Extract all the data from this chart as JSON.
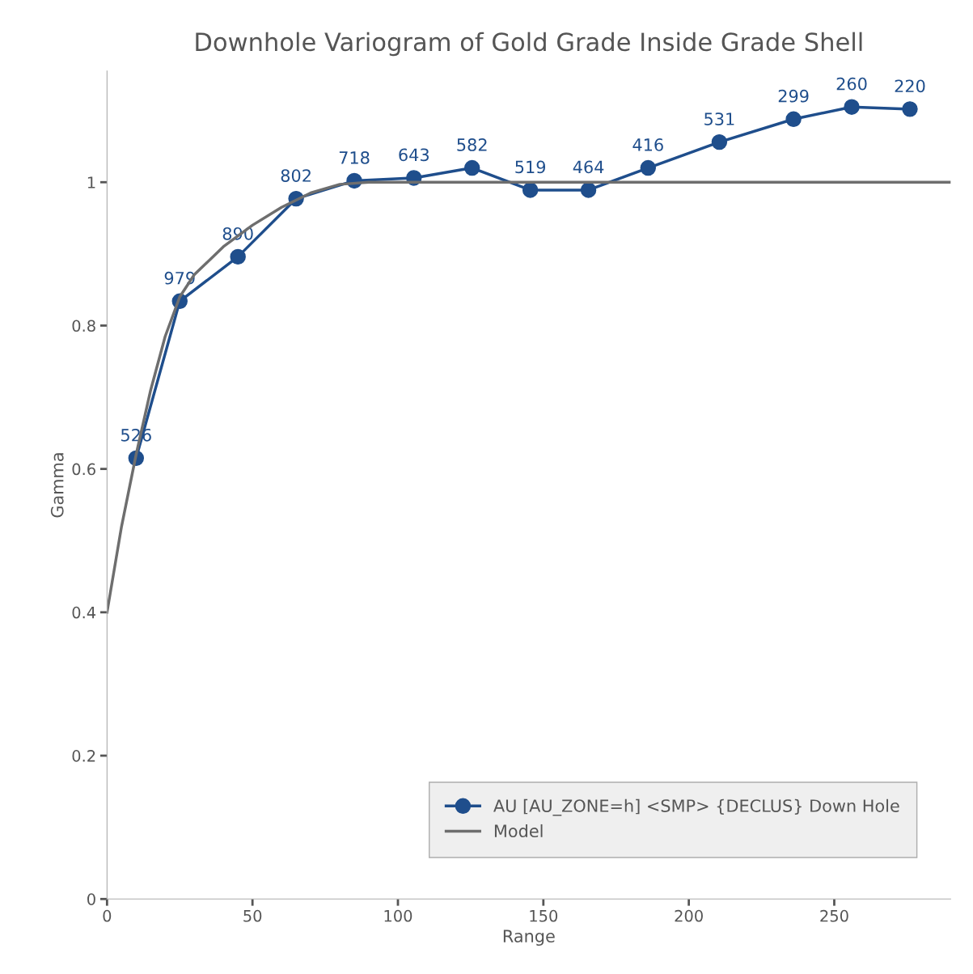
{
  "chart_data": {
    "type": "line",
    "title": "Downhole Variogram of Gold Grade Inside Grade Shell",
    "xlabel": "Range",
    "ylabel": "Gamma",
    "xlim": [
      0,
      290
    ],
    "xticks": [
      0,
      50,
      100,
      150,
      200,
      250
    ],
    "ylim": [
      0,
      1.155
    ],
    "yticks": [
      0,
      0.2,
      0.4,
      0.6,
      0.8,
      1
    ],
    "grid": false,
    "legend": "bottom right",
    "series": [
      {
        "name": "AU [AU_ZONE=h] <SMP> {DECLUS} Down Hole",
        "color": "#1f4e8c",
        "marker": "circle",
        "x": [
          10,
          25,
          45,
          65,
          85,
          105.5,
          125.5,
          145.5,
          165.5,
          186,
          210.5,
          236,
          256,
          276
        ],
        "values": [
          0.615,
          0.834,
          0.896,
          0.977,
          1.002,
          1.006,
          1.02,
          0.989,
          0.989,
          1.02,
          1.056,
          1.088,
          1.105,
          1.102
        ]
      },
      {
        "name": "Model",
        "color": "#6e6e6e",
        "marker": "none",
        "x": [
          0,
          5,
          10,
          15,
          20,
          25,
          30,
          40,
          50,
          60,
          70,
          80,
          90,
          290
        ],
        "values": [
          0.4,
          0.52,
          0.62,
          0.71,
          0.785,
          0.84,
          0.871,
          0.91,
          0.94,
          0.965,
          0.985,
          0.997,
          1.0,
          1.0
        ]
      }
    ],
    "annotations": [
      {
        "text": "526",
        "x": 10,
        "y": 0.615
      },
      {
        "text": "979",
        "x": 25,
        "y": 0.834
      },
      {
        "text": "890",
        "x": 45,
        "y": 0.896
      },
      {
        "text": "802",
        "x": 65,
        "y": 0.977
      },
      {
        "text": "718",
        "x": 85,
        "y": 1.002
      },
      {
        "text": "643",
        "x": 105.5,
        "y": 1.006
      },
      {
        "text": "582",
        "x": 125.5,
        "y": 1.02
      },
      {
        "text": "519",
        "x": 145.5,
        "y": 0.989
      },
      {
        "text": "464",
        "x": 165.5,
        "y": 0.989
      },
      {
        "text": "416",
        "x": 186,
        "y": 1.02
      },
      {
        "text": "531",
        "x": 210.5,
        "y": 1.056
      },
      {
        "text": "299",
        "x": 236,
        "y": 1.088
      },
      {
        "text": "260",
        "x": 256,
        "y": 1.105
      },
      {
        "text": "220",
        "x": 276,
        "y": 1.102
      }
    ]
  }
}
